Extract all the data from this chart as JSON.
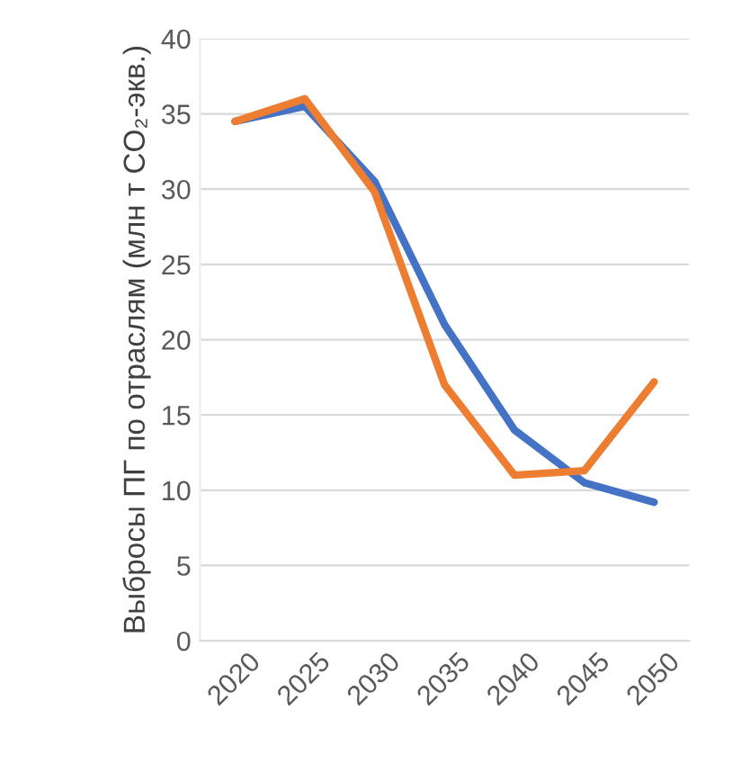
{
  "chart_data": {
    "type": "line",
    "ylabel": "Выбросы ПГ по отраслям (млн т CO₂-экв.)",
    "categories": [
      "2020",
      "2025",
      "2030",
      "2035",
      "2040",
      "2045",
      "2050"
    ],
    "series": [
      {
        "color": "#4472c4",
        "values": [
          34.5,
          35.5,
          30.5,
          21,
          14,
          10.5,
          9.2
        ]
      },
      {
        "color": "#ed7d31",
        "values": [
          34.5,
          36,
          29.8,
          17,
          11,
          11.3,
          17.2
        ]
      }
    ],
    "ylim": [
      0,
      40
    ],
    "yticks": [
      0,
      5,
      10,
      15,
      20,
      25,
      30,
      35,
      40
    ],
    "grid": "y",
    "legend": false,
    "marker": "none",
    "line_style": "solid"
  }
}
